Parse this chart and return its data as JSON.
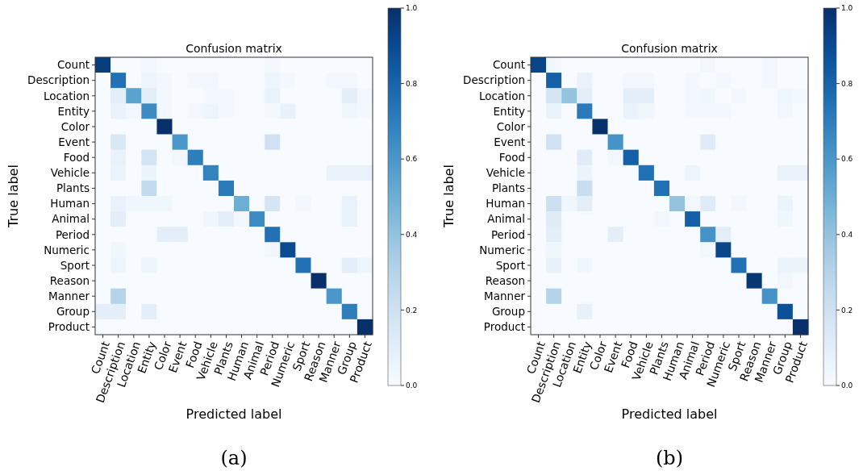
{
  "chart_data": [
    {
      "type": "heatmap",
      "title": "Confusion matrix",
      "xlabel": "Predicted label",
      "ylabel": "True label",
      "annotations": [
        "(a)"
      ],
      "categories": [
        "Count",
        "Description",
        "Location",
        "Entity",
        "Color",
        "Event",
        "Food",
        "Vehicle",
        "Plants",
        "Human",
        "Animal",
        "Period",
        "Numeric",
        "Sport",
        "Reason",
        "Manner",
        "Group",
        "Product"
      ],
      "y_categories": [
        "Count",
        "Description",
        "Location",
        "Entity",
        "Color",
        "Event",
        "Food",
        "Vehicle",
        "Plants",
        "Human",
        "Animal",
        "Period",
        "Numeric",
        "Sport",
        "Reason",
        "Manner",
        "Group",
        "Product"
      ],
      "clim": [
        0,
        1
      ],
      "cticks": [
        {
          "value": 0,
          "label": "0.0"
        },
        {
          "value": 0.2,
          "label": "0.2"
        },
        {
          "value": 0.4,
          "label": "0.4"
        },
        {
          "value": 0.6,
          "label": "0.6"
        },
        {
          "value": 0.8,
          "label": "0.8"
        },
        {
          "value": 1,
          "label": "1.0"
        }
      ],
      "cells": [
        [
          0.95,
          0,
          0,
          0.03,
          0,
          0,
          0,
          0,
          0,
          0,
          0,
          0.03,
          0,
          0,
          0,
          0,
          0,
          0
        ],
        [
          0,
          0.75,
          0,
          0.05,
          0.02,
          0,
          0.03,
          0.03,
          0,
          0,
          0,
          0.05,
          0.02,
          0,
          0,
          0.03,
          0.03,
          0
        ],
        [
          0,
          0.1,
          0.55,
          0.1,
          0.02,
          0,
          0,
          0.02,
          0.02,
          0,
          0,
          0.07,
          0,
          0,
          0,
          0,
          0.1,
          0.03
        ],
        [
          0,
          0.07,
          0.03,
          0.65,
          0.03,
          0,
          0.03,
          0.05,
          0.02,
          0,
          0,
          0.02,
          0.08,
          0,
          0,
          0,
          0.04,
          0.02
        ],
        [
          0,
          0,
          0,
          0,
          1,
          0,
          0,
          0,
          0,
          0,
          0,
          0,
          0,
          0,
          0,
          0,
          0,
          0
        ],
        [
          0,
          0.15,
          0,
          0,
          0,
          0.6,
          0,
          0,
          0,
          0,
          0,
          0.2,
          0,
          0,
          0,
          0,
          0,
          0
        ],
        [
          0,
          0.07,
          0,
          0.18,
          0,
          0.03,
          0.7,
          0,
          0,
          0,
          0,
          0,
          0,
          0,
          0,
          0,
          0,
          0
        ],
        [
          0,
          0.06,
          0,
          0.06,
          0,
          0,
          0,
          0.68,
          0,
          0,
          0,
          0,
          0,
          0,
          0,
          0.07,
          0.07,
          0.07
        ],
        [
          0,
          0,
          0,
          0.25,
          0,
          0,
          0,
          0,
          0.72,
          0,
          0,
          0,
          0,
          0,
          0,
          0,
          0,
          0
        ],
        [
          0,
          0.07,
          0.04,
          0.04,
          0.04,
          0,
          0,
          0,
          0,
          0.5,
          0,
          0.17,
          0,
          0.03,
          0,
          0,
          0.07,
          0
        ],
        [
          0,
          0.1,
          0,
          0,
          0,
          0,
          0,
          0.04,
          0.1,
          0.03,
          0.65,
          0,
          0,
          0,
          0,
          0,
          0.07,
          0
        ],
        [
          0,
          0,
          0,
          0,
          0.1,
          0.1,
          0,
          0,
          0,
          0,
          0,
          0.75,
          0,
          0,
          0,
          0,
          0,
          0
        ],
        [
          0,
          0.04,
          0,
          0,
          0,
          0,
          0,
          0,
          0,
          0,
          0,
          0.03,
          0.9,
          0,
          0,
          0,
          0,
          0
        ],
        [
          0,
          0.05,
          0,
          0.05,
          0,
          0,
          0,
          0,
          0,
          0,
          0,
          0,
          0,
          0.75,
          0,
          0,
          0.1,
          0.05
        ],
        [
          0,
          0,
          0,
          0,
          0,
          0,
          0,
          0,
          0,
          0,
          0,
          0,
          0,
          0,
          1,
          0,
          0,
          0
        ],
        [
          0,
          0.3,
          0,
          0,
          0,
          0,
          0,
          0,
          0,
          0,
          0,
          0,
          0,
          0,
          0,
          0.6,
          0,
          0
        ],
        [
          0.1,
          0.1,
          0,
          0.1,
          0,
          0,
          0,
          0,
          0,
          0,
          0,
          0,
          0,
          0,
          0,
          0,
          0.7,
          0
        ],
        [
          0,
          0,
          0,
          0,
          0,
          0,
          0,
          0,
          0,
          0,
          0,
          0,
          0,
          0,
          0,
          0,
          0,
          1
        ]
      ]
    },
    {
      "type": "heatmap",
      "title": "Confusion matrix",
      "xlabel": "Predicted label",
      "ylabel": "True label",
      "annotations": [
        "(b)"
      ],
      "categories": [
        "Count",
        "Description",
        "Location",
        "Entity",
        "Color",
        "Event",
        "Food",
        "Vehicle",
        "Plants",
        "Human",
        "Animal",
        "Period",
        "Numeric",
        "Sport",
        "Reason",
        "Manner",
        "Group",
        "Product"
      ],
      "y_categories": [
        "Count",
        "Description",
        "Location",
        "Entity",
        "Color",
        "Event",
        "Food",
        "Vehicle",
        "Plants",
        "Human",
        "Animal",
        "Period",
        "Numeric",
        "Sport",
        "Reason",
        "Manner",
        "Group",
        "Product"
      ],
      "clim": [
        0,
        1
      ],
      "cticks": [
        {
          "value": 0,
          "label": "0.0"
        },
        {
          "value": 0.2,
          "label": "0.2"
        },
        {
          "value": 0.4,
          "label": "0.4"
        },
        {
          "value": 0.6,
          "label": "0.6"
        },
        {
          "value": 0.8,
          "label": "0.8"
        },
        {
          "value": 1,
          "label": "1.0"
        }
      ],
      "cells": [
        [
          0.92,
          0.03,
          0,
          0,
          0,
          0,
          0,
          0,
          0,
          0,
          0,
          0.03,
          0,
          0,
          0,
          0.03,
          0,
          0
        ],
        [
          0,
          0.82,
          0,
          0.07,
          0,
          0,
          0.03,
          0.03,
          0,
          0,
          0.02,
          0,
          0.02,
          0,
          0,
          0.03,
          0,
          0
        ],
        [
          0,
          0.17,
          0.4,
          0.1,
          0,
          0,
          0.1,
          0.1,
          0,
          0,
          0.02,
          0.04,
          0,
          0.02,
          0,
          0,
          0.04,
          0.02
        ],
        [
          0,
          0.07,
          0,
          0.72,
          0,
          0,
          0.07,
          0.04,
          0,
          0,
          0.02,
          0.02,
          0.02,
          0,
          0,
          0,
          0.03,
          0
        ],
        [
          0,
          0,
          0,
          0,
          1,
          0,
          0,
          0,
          0,
          0,
          0,
          0,
          0,
          0,
          0,
          0,
          0,
          0
        ],
        [
          0,
          0.2,
          0,
          0,
          0,
          0.62,
          0,
          0,
          0,
          0,
          0,
          0.12,
          0,
          0,
          0,
          0,
          0,
          0
        ],
        [
          0,
          0,
          0,
          0.12,
          0,
          0.03,
          0.82,
          0,
          0,
          0,
          0,
          0,
          0,
          0,
          0,
          0,
          0,
          0
        ],
        [
          0,
          0,
          0,
          0.06,
          0,
          0,
          0,
          0.75,
          0,
          0,
          0.05,
          0,
          0,
          0,
          0,
          0,
          0.07,
          0.07
        ],
        [
          0,
          0,
          0,
          0.23,
          0,
          0,
          0,
          0,
          0.75,
          0,
          0,
          0,
          0,
          0,
          0,
          0,
          0,
          0
        ],
        [
          0,
          0.22,
          0.04,
          0.1,
          0,
          0,
          0,
          0,
          0,
          0.4,
          0.03,
          0.12,
          0,
          0.03,
          0,
          0,
          0.06,
          0
        ],
        [
          0,
          0.12,
          0,
          0,
          0,
          0,
          0,
          0,
          0.03,
          0,
          0.82,
          0,
          0,
          0,
          0,
          0,
          0.04,
          0
        ],
        [
          0,
          0.1,
          0,
          0,
          0,
          0.1,
          0,
          0,
          0,
          0,
          0,
          0.62,
          0.1,
          0,
          0,
          0,
          0,
          0
        ],
        [
          0,
          0.04,
          0,
          0,
          0,
          0,
          0,
          0,
          0,
          0,
          0,
          0.03,
          0.92,
          0,
          0,
          0,
          0,
          0
        ],
        [
          0,
          0.08,
          0,
          0.04,
          0,
          0,
          0,
          0,
          0,
          0,
          0,
          0,
          0,
          0.75,
          0,
          0,
          0.06,
          0.06
        ],
        [
          0,
          0,
          0,
          0,
          0,
          0,
          0,
          0,
          0,
          0,
          0,
          0,
          0,
          0,
          0.98,
          0,
          0.03,
          0
        ],
        [
          0,
          0.3,
          0,
          0,
          0,
          0,
          0,
          0,
          0,
          0,
          0,
          0,
          0,
          0,
          0,
          0.62,
          0,
          0
        ],
        [
          0,
          0,
          0,
          0.08,
          0,
          0,
          0,
          0,
          0,
          0,
          0,
          0,
          0,
          0,
          0,
          0,
          0.88,
          0
        ],
        [
          0,
          0,
          0,
          0,
          0,
          0,
          0,
          0,
          0,
          0,
          0,
          0,
          0,
          0,
          0,
          0,
          0,
          1
        ]
      ]
    }
  ]
}
